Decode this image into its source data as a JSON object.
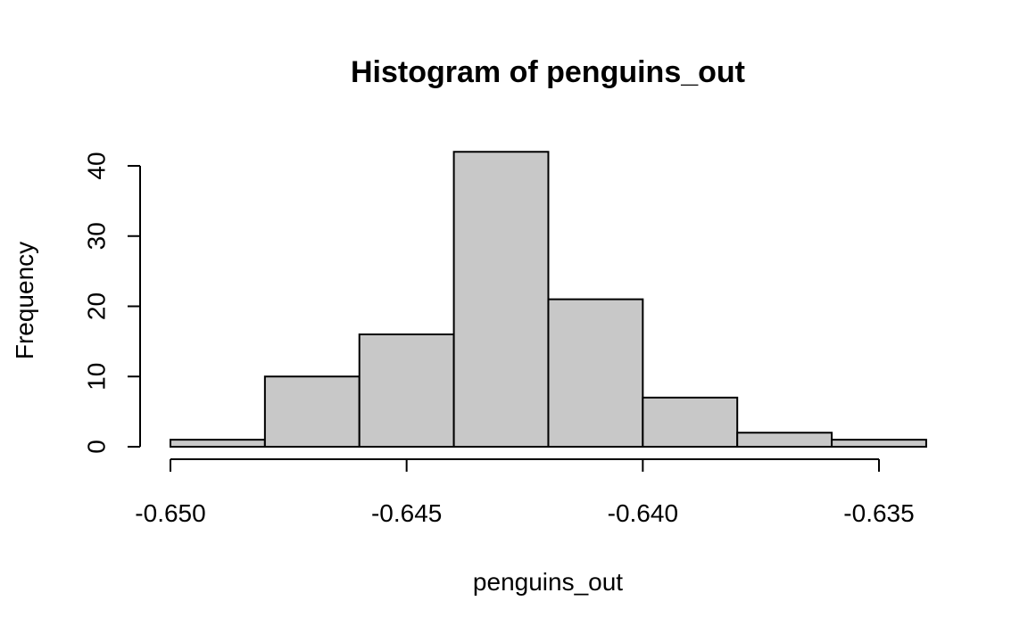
{
  "chart_data": {
    "type": "bar",
    "title": "Histogram of penguins_out",
    "xlabel": "penguins_out",
    "ylabel": "Frequency",
    "xlim": [
      -0.65,
      -0.634
    ],
    "ylim": [
      0,
      42
    ],
    "x_ticks": [
      -0.65,
      -0.645,
      -0.64,
      -0.635
    ],
    "x_tick_labels": [
      "-0.650",
      "-0.645",
      "-0.640",
      "-0.635"
    ],
    "y_ticks": [
      0,
      10,
      20,
      30,
      40
    ],
    "y_tick_labels": [
      "0",
      "10",
      "20",
      "30",
      "40"
    ],
    "bins": [
      {
        "start": -0.65,
        "end": -0.648,
        "count": 1
      },
      {
        "start": -0.648,
        "end": -0.646,
        "count": 10
      },
      {
        "start": -0.646,
        "end": -0.644,
        "count": 16
      },
      {
        "start": -0.644,
        "end": -0.642,
        "count": 42
      },
      {
        "start": -0.642,
        "end": -0.64,
        "count": 21
      },
      {
        "start": -0.64,
        "end": -0.638,
        "count": 7
      },
      {
        "start": -0.638,
        "end": -0.636,
        "count": 2
      },
      {
        "start": -0.636,
        "end": -0.634,
        "count": 1
      }
    ],
    "bar_color": "#c8c8c8",
    "grid": false,
    "legend": "none"
  }
}
